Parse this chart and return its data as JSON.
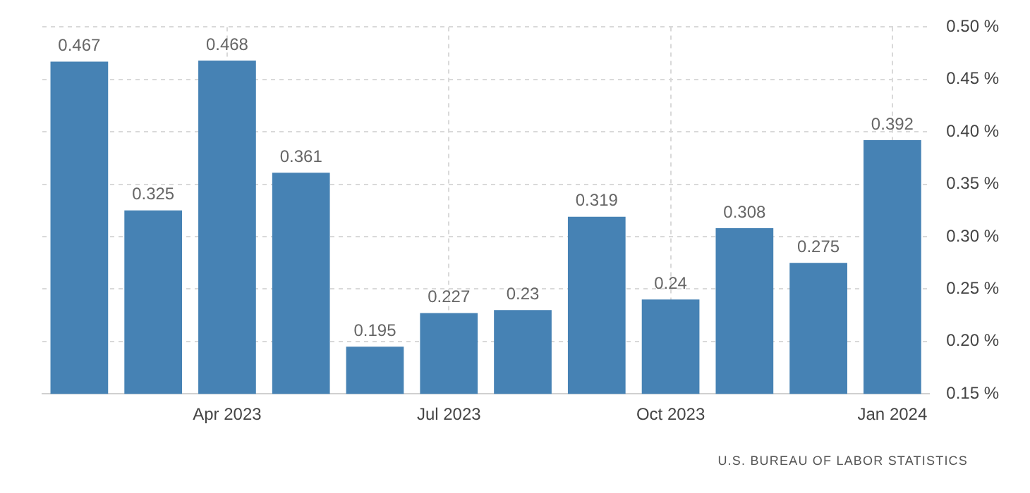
{
  "chart_data": {
    "type": "bar",
    "categories": [
      null,
      null,
      "Apr 2023",
      null,
      null,
      "Jul 2023",
      null,
      null,
      "Oct 2023",
      null,
      null,
      "Jan 2024"
    ],
    "values": [
      0.467,
      0.325,
      0.468,
      0.361,
      0.195,
      0.227,
      0.23,
      0.319,
      0.24,
      0.308,
      0.275,
      0.392
    ],
    "color": "#4682b4",
    "ylim": [
      0.15,
      0.5
    ],
    "yticks": [
      {
        "value": 0.15,
        "label": "0.15 %"
      },
      {
        "value": 0.2,
        "label": "0.20 %"
      },
      {
        "value": 0.25,
        "label": "0.25 %"
      },
      {
        "value": 0.3,
        "label": "0.30 %"
      },
      {
        "value": 0.35,
        "label": "0.35 %"
      },
      {
        "value": 0.4,
        "label": "0.40 %"
      },
      {
        "value": 0.45,
        "label": "0.45 %"
      },
      {
        "value": 0.5,
        "label": "0.50 %"
      }
    ],
    "grid": true,
    "data_labels": true,
    "annotations": [
      "U.S. BUREAU OF LABOR STATISTICS"
    ]
  }
}
